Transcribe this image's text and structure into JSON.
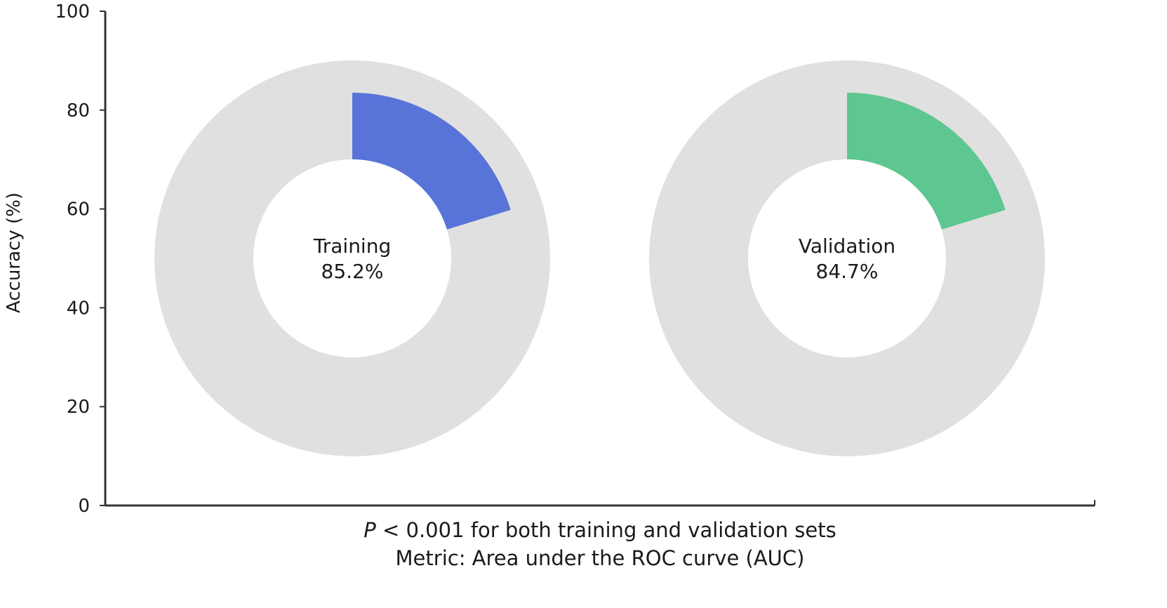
{
  "chart_data": {
    "type": "pie",
    "ylabel": "Accuracy (%)",
    "ylim": [
      0,
      100
    ],
    "yticks": [
      0,
      20,
      40,
      60,
      80,
      100
    ],
    "grid": false,
    "donuts": [
      {
        "label": "Training",
        "value": 85.2,
        "value_text": "85.2%",
        "color": "#5874d8"
      },
      {
        "label": "Validation",
        "value": 84.7,
        "value_text": "84.7%",
        "color": "#5ec690"
      }
    ],
    "ring_color": "#e0e0e0",
    "footnote": {
      "line1_italic": "P",
      "line1_rest": " < 0.001 for both training and validation sets",
      "line2": "Metric: Area under the ROC curve (AUC)"
    }
  }
}
